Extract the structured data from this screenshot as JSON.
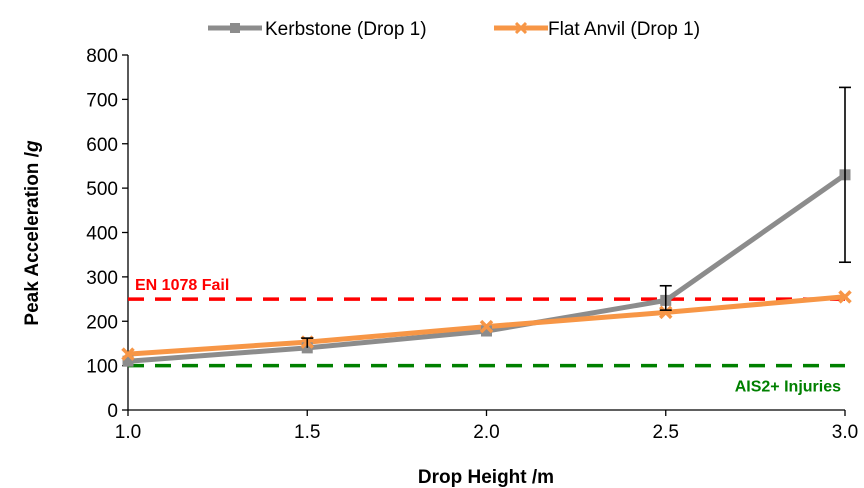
{
  "chart_data": {
    "type": "line",
    "title": "",
    "xlabel": "Drop Height /m",
    "ylabel": "Peak Acceleration /g",
    "ylabel_main": "Peak Acceleration /",
    "ylabel_unit": "g",
    "xlim": [
      1.0,
      3.0
    ],
    "ylim": [
      0,
      800
    ],
    "x_ticks": [
      "1.0",
      "1.5",
      "2.0",
      "2.5",
      "3.0"
    ],
    "y_ticks": [
      "0",
      "100",
      "200",
      "300",
      "400",
      "500",
      "600",
      "700",
      "800"
    ],
    "grid": false,
    "legend_position": "top",
    "x": [
      1.0,
      1.5,
      2.0,
      2.5,
      3.0
    ],
    "series": [
      {
        "name": "Kerbstone (Drop 1)",
        "color": "#8c8c8c",
        "marker": "square",
        "values": [
          110,
          140,
          178,
          247,
          530
        ],
        "error_low": [
          null,
          null,
          null,
          225,
          333
        ],
        "error_high": [
          null,
          162,
          null,
          280,
          727
        ]
      },
      {
        "name": "Flat Anvil (Drop 1)",
        "color": "#f79646",
        "marker": "x",
        "values": [
          126,
          153,
          188,
          220,
          255
        ],
        "error_low": [
          null,
          null,
          null,
          null,
          null
        ],
        "error_high": [
          null,
          null,
          null,
          null,
          null
        ]
      }
    ],
    "reference_lines": [
      {
        "label": "EN 1078 Fail",
        "value": 250,
        "color": "#ff0000"
      },
      {
        "label": "AIS2+ Injuries",
        "value": 100,
        "color": "#008000"
      }
    ]
  }
}
